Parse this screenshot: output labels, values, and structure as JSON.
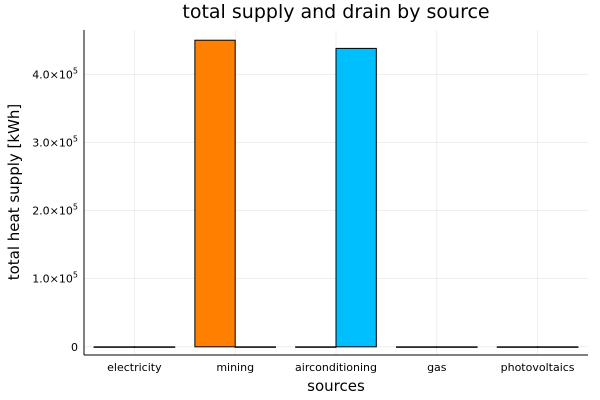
{
  "chart_data": {
    "type": "bar",
    "title": "total supply and drain by source",
    "xlabel": "sources",
    "ylabel": "total heat supply [kWh]",
    "categories": [
      "electricity",
      "mining",
      "airconditioning",
      "gas",
      "photovoltaics"
    ],
    "ylim": [
      -12000,
      465000
    ],
    "yticks": [
      0,
      100000,
      200000,
      300000,
      400000
    ],
    "ytick_labels": [
      {
        "mantissa": "0",
        "exponent": ""
      },
      {
        "mantissa": "1.0×10",
        "exponent": "5"
      },
      {
        "mantissa": "2.0×10",
        "exponent": "5"
      },
      {
        "mantissa": "3.0×10",
        "exponent": "5"
      },
      {
        "mantissa": "4.0×10",
        "exponent": "5"
      }
    ],
    "grid": true,
    "legend": false,
    "series": [
      {
        "color": "#ff7f00",
        "values": [
          0,
          450000,
          0,
          0,
          0
        ]
      },
      {
        "color": "#00bfff",
        "values": [
          0,
          0,
          438000,
          0,
          0
        ]
      }
    ]
  }
}
